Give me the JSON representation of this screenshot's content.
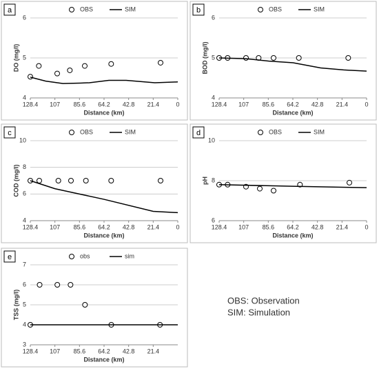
{
  "chart_data": [
    {
      "type": "line",
      "panel_label": "a",
      "ylabel": "DO (mg/l)",
      "xlabel": "Distance (km)",
      "xlim": [
        128.4,
        0
      ],
      "xticks": [
        128.4,
        107,
        85.6,
        64.2,
        42.8,
        21.4,
        0
      ],
      "ylim": [
        4,
        6
      ],
      "yticks": [
        4,
        5,
        6
      ],
      "grid": true,
      "series": [
        {
          "name": "OBS",
          "marker": "circle",
          "color": "#000000",
          "x": [
            128.4,
            121,
            105,
            94,
            81,
            58,
            15
          ],
          "values": [
            4.53,
            4.8,
            4.61,
            4.69,
            4.8,
            4.85,
            4.88
          ]
        },
        {
          "name": "SIM",
          "marker": "line",
          "color": "#000000",
          "x": [
            128.4,
            115,
            100,
            85,
            77,
            60,
            45,
            20,
            0
          ],
          "values": [
            4.52,
            4.42,
            4.36,
            4.37,
            4.38,
            4.44,
            4.44,
            4.38,
            4.4
          ]
        }
      ]
    },
    {
      "type": "line",
      "panel_label": "b",
      "ylabel": "BOD (mg/l)",
      "xlabel": "Distance (km)",
      "xlim": [
        128.4,
        0
      ],
      "xticks": [
        128.4,
        107,
        85.6,
        64.2,
        42.8,
        21.4,
        0
      ],
      "ylim": [
        4,
        6
      ],
      "yticks": [
        4,
        5,
        6
      ],
      "grid": true,
      "series": [
        {
          "name": "OBS",
          "marker": "circle",
          "color": "#000000",
          "x": [
            128.4,
            121,
            105,
            94,
            81,
            59,
            16
          ],
          "values": [
            5.0,
            5.0,
            5.0,
            5.0,
            5.0,
            5.0,
            5.0
          ]
        },
        {
          "name": "SIM",
          "marker": "line",
          "color": "#000000",
          "x": [
            128.4,
            105,
            85,
            64,
            40,
            20,
            0
          ],
          "values": [
            5.0,
            4.98,
            4.92,
            4.88,
            4.75,
            4.7,
            4.67
          ]
        }
      ]
    },
    {
      "type": "line",
      "panel_label": "c",
      "ylabel": "COD (mg/l)",
      "xlabel": "Distance (km)",
      "xlim": [
        128.4,
        0
      ],
      "xticks": [
        128.4,
        107,
        85.6,
        64.2,
        42.8,
        21.4,
        0
      ],
      "ylim": [
        4,
        10
      ],
      "yticks": [
        4,
        6,
        8,
        10
      ],
      "grid": true,
      "series": [
        {
          "name": "OBS",
          "marker": "circle",
          "color": "#000000",
          "x": [
            128.4,
            120.6,
            104,
            93,
            80,
            58,
            15
          ],
          "values": [
            7.0,
            7.0,
            7.0,
            7.0,
            7.0,
            7.0,
            7.0
          ]
        },
        {
          "name": "SIM",
          "marker": "line",
          "color": "#000000",
          "x": [
            128.4,
            107,
            85.6,
            64.2,
            21.4,
            0
          ],
          "values": [
            7.0,
            6.4,
            6.0,
            5.6,
            4.7,
            4.6
          ]
        }
      ]
    },
    {
      "type": "line",
      "panel_label": "d",
      "ylabel": "pH",
      "xlabel": "Distance (km)",
      "xlim": [
        128.4,
        0
      ],
      "xticks": [
        128.4,
        107,
        85.6,
        64.2,
        42.8,
        21.4,
        0
      ],
      "ylim": [
        6,
        10
      ],
      "yticks": [
        6,
        8,
        10
      ],
      "grid": true,
      "series": [
        {
          "name": "OBS",
          "marker": "circle",
          "color": "#000000",
          "x": [
            128.4,
            121,
            105,
            93,
            81,
            58,
            15
          ],
          "values": [
            7.8,
            7.8,
            7.7,
            7.6,
            7.5,
            7.8,
            7.9
          ]
        },
        {
          "name": "SIM",
          "marker": "line",
          "color": "#000000",
          "x": [
            128.4,
            64.2,
            0
          ],
          "values": [
            7.8,
            7.72,
            7.65
          ]
        }
      ]
    },
    {
      "type": "line",
      "panel_label": "e",
      "ylabel": "TSS (mg/l)",
      "xlabel": "Distance (km)",
      "xlim": [
        128.4,
        0
      ],
      "xticks": [
        128.4,
        107,
        85.6,
        64.2,
        42.8,
        21.4
      ],
      "ylim": [
        3,
        7
      ],
      "yticks": [
        3,
        4,
        5,
        6,
        7
      ],
      "grid": true,
      "series": [
        {
          "name": "obs",
          "marker": "circle",
          "color": "#000000",
          "x": [
            128.4,
            120.3,
            104.9,
            93.4,
            80.8,
            57.9,
            15.5
          ],
          "values": [
            4,
            6,
            6,
            6,
            5,
            4,
            4
          ]
        },
        {
          "name": "sim",
          "marker": "line",
          "color": "#000000",
          "x": [
            128.4,
            0
          ],
          "values": [
            4,
            4
          ]
        }
      ]
    }
  ],
  "notes": [
    "OBS: Observation",
    "SIM: Simulation"
  ]
}
